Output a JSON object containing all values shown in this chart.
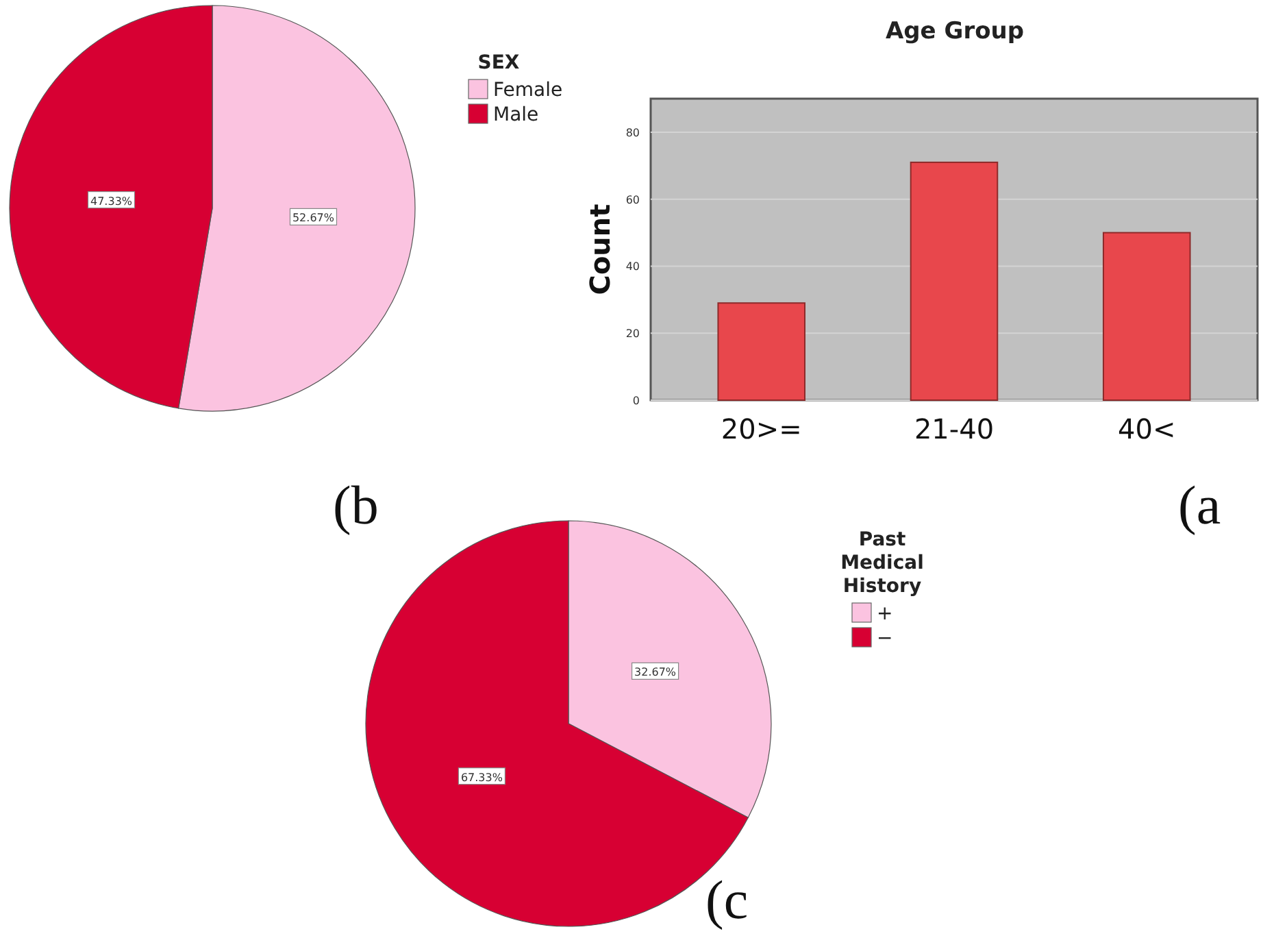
{
  "chart_data": [
    {
      "type": "pie",
      "categories": [
        "Female",
        "Male"
      ],
      "values": [
        52.67,
        47.33
      ],
      "colors": [
        "#fbc3e0",
        "#d70033"
      ],
      "value_labels": [
        "52.67%",
        "47.33%"
      ],
      "legend_title": "SEX",
      "legend": "right",
      "annotations": [
        "(b"
      ]
    },
    {
      "type": "bar",
      "title": "Age Group",
      "ylabel": "Count",
      "categories": [
        "20>=",
        "21-40",
        "40<"
      ],
      "values": [
        29,
        71,
        50
      ],
      "color": "#e8474c",
      "ylim": [
        0,
        90
      ],
      "yticks": [
        0,
        20,
        40,
        60,
        80
      ],
      "grid": "y",
      "annotations": [
        "(a"
      ]
    },
    {
      "type": "pie",
      "categories": [
        "+",
        "−"
      ],
      "values": [
        32.67,
        67.33
      ],
      "colors": [
        "#fbc3e0",
        "#d70033"
      ],
      "value_labels": [
        "32.67%",
        "67.33%"
      ],
      "legend_title": "Past Medical History",
      "legend": "right",
      "annotations": [
        "(c"
      ]
    }
  ]
}
